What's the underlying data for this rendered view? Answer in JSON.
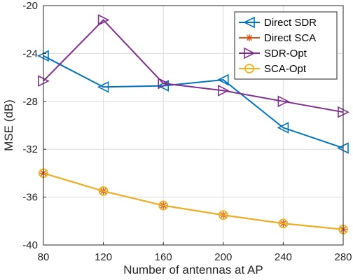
{
  "chart_data": {
    "type": "line",
    "xlabel": "Number of antennas at AP",
    "ylabel": "MSE (dB)",
    "x": [
      80,
      120,
      160,
      200,
      240,
      280
    ],
    "xlim": [
      80,
      280
    ],
    "ylim": [
      -40,
      -20
    ],
    "xticks": [
      "80",
      "120",
      "160",
      "200",
      "240",
      "280"
    ],
    "yticks": [
      "-20",
      "-24",
      "-28",
      "-32",
      "-36",
      "-40"
    ],
    "grid": true,
    "legend_position": "top-right",
    "series": [
      {
        "name": "Direct SDR",
        "values": [
          -24.2,
          -26.8,
          -26.7,
          -26.2,
          -30.2,
          -31.9
        ],
        "color": "#0072BD",
        "marker": "triangle-left"
      },
      {
        "name": "Direct SCA",
        "values": [
          -34.0,
          -35.5,
          -36.7,
          -37.5,
          -38.2,
          -38.7
        ],
        "color": "#D95319",
        "marker": "asterisk"
      },
      {
        "name": "SDR-Opt",
        "values": [
          -26.3,
          -21.2,
          -26.5,
          -27.1,
          -28.0,
          -28.9
        ],
        "color": "#7E2F8E",
        "marker": "triangle-right"
      },
      {
        "name": "SCA-Opt",
        "values": [
          -34.0,
          -35.5,
          -36.7,
          -37.5,
          -38.2,
          -38.7
        ],
        "color": "#EDB120",
        "marker": "circle"
      }
    ]
  }
}
